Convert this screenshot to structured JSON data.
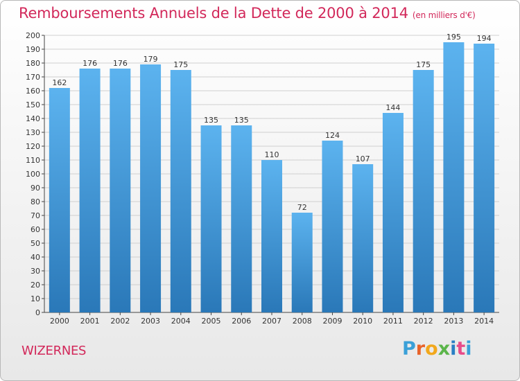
{
  "header": {
    "title": "Remboursements Annuels de la Dette de 2000 à 2014",
    "subtitle": "(en milliers d'€)"
  },
  "footer": {
    "place": "WIZERNES",
    "logo": "Proxiti",
    "logo_colors": [
      "#3aa0d8",
      "#e8632a",
      "#f2a81c",
      "#5bb54a",
      "#2a7fc4",
      "#e84c8a",
      "#3aa0d8"
    ]
  },
  "colors": {
    "title": "#d2285a",
    "bar_top": "#5cb3ef",
    "bar_bottom": "#2a78b8",
    "grid": "#cfcfcf"
  },
  "chart_data": {
    "type": "bar",
    "title": "Remboursements Annuels de la Dette de 2000 à 2014",
    "xlabel": "",
    "ylabel": "(en milliers d'€)",
    "ylim": [
      0,
      200
    ],
    "ytick_step": 10,
    "grid": true,
    "categories": [
      "2000",
      "2001",
      "2002",
      "2003",
      "2004",
      "2005",
      "2006",
      "2007",
      "2008",
      "2009",
      "2010",
      "2011",
      "2012",
      "2013",
      "2014"
    ],
    "values": [
      162,
      176,
      176,
      179,
      175,
      135,
      135,
      110,
      72,
      124,
      107,
      144,
      175,
      195,
      194
    ]
  }
}
